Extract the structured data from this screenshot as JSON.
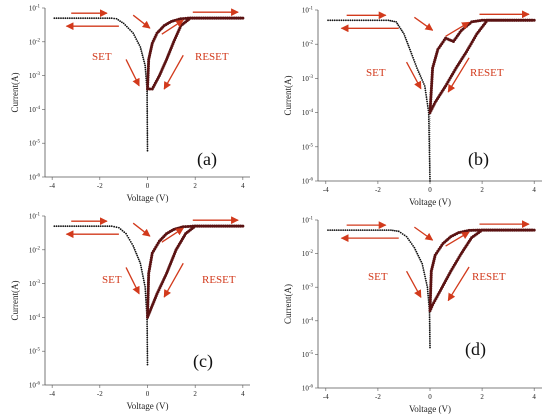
{
  "colors": {
    "set_branch": "#111111",
    "reset_branch": "#5a1212",
    "arrow": "#d23a1c",
    "annotation": "#d23a1c"
  },
  "chart_data": [
    {
      "panel": "(a)",
      "type": "scatter",
      "xlabel": "Voltage (V)",
      "ylabel": "Current(A)",
      "xlim": [
        -4.3,
        4.3
      ],
      "ylim_log10": [
        -6,
        -1
      ],
      "xticks": [
        "-4",
        "-2",
        "0",
        "2",
        "4"
      ],
      "yticks": [
        "10-6",
        "10-5",
        "10-4",
        "10-3",
        "10-2",
        "10-1"
      ],
      "y_scale": "log",
      "compliance_current": 0.05,
      "annotations": [
        "SET",
        "RESET"
      ],
      "series": [
        {
          "role": "set-up",
          "points": [
            [
              0.0,
              6e-06
            ],
            [
              -0.02,
              0.0004
            ],
            [
              -0.1,
              0.002
            ],
            [
              -0.3,
              0.007
            ],
            [
              -0.6,
              0.018
            ],
            [
              -1.0,
              0.035
            ],
            [
              -1.3,
              0.048
            ],
            [
              -1.5,
              0.05
            ],
            [
              -4.0,
              0.05
            ]
          ]
        },
        {
          "role": "reset",
          "points": [
            [
              0.0,
              0.0004
            ],
            [
              0.05,
              0.003
            ],
            [
              0.2,
              0.009
            ],
            [
              0.4,
              0.018
            ],
            [
              0.7,
              0.03
            ],
            [
              1.0,
              0.04
            ],
            [
              1.4,
              0.048
            ],
            [
              1.7,
              0.05
            ],
            [
              4.0,
              0.05
            ]
          ]
        },
        {
          "role": "reset-return",
          "points": [
            [
              4.0,
              0.05
            ],
            [
              1.8,
              0.05
            ],
            [
              1.4,
              0.03
            ],
            [
              1.1,
              0.01
            ],
            [
              0.8,
              0.003
            ],
            [
              0.5,
              0.001
            ],
            [
              0.2,
              0.0004
            ],
            [
              0.0,
              0.0004
            ]
          ]
        }
      ]
    },
    {
      "panel": "(b)",
      "type": "scatter",
      "xlabel": "Voltage (V)",
      "ylabel": "Current(A)",
      "xlim": [
        -4.3,
        4.3
      ],
      "ylim_log10": [
        -6,
        -1
      ],
      "xticks": [
        "-4",
        "-2",
        "0",
        "2",
        "4"
      ],
      "yticks": [
        "10-6",
        "10-5",
        "10-4",
        "10-3",
        "10-2",
        "10-1"
      ],
      "y_scale": "log",
      "compliance_current": 0.05,
      "annotations": [
        "SET",
        "RESET"
      ],
      "series": [
        {
          "role": "set-up",
          "points": [
            [
              0.0,
              1e-06
            ],
            [
              -0.05,
              0.0001
            ],
            [
              -0.2,
              0.0006
            ],
            [
              -0.5,
              0.002
            ],
            [
              -0.8,
              0.008
            ],
            [
              -1.0,
              0.02
            ],
            [
              -1.3,
              0.045
            ],
            [
              -1.6,
              0.05
            ],
            [
              -4.0,
              0.05
            ]
          ]
        },
        {
          "role": "reset",
          "points": [
            [
              0.0,
              0.0001
            ],
            [
              0.1,
              0.002
            ],
            [
              0.3,
              0.007
            ],
            [
              0.6,
              0.015
            ],
            [
              0.9,
              0.012
            ],
            [
              1.2,
              0.025
            ],
            [
              1.6,
              0.045
            ],
            [
              2.0,
              0.05
            ],
            [
              4.0,
              0.05
            ]
          ]
        },
        {
          "role": "reset-return",
          "points": [
            [
              4.0,
              0.05
            ],
            [
              2.2,
              0.05
            ],
            [
              1.8,
              0.02
            ],
            [
              1.4,
              0.006
            ],
            [
              1.0,
              0.002
            ],
            [
              0.6,
              0.0006
            ],
            [
              0.2,
              0.0002
            ],
            [
              0.0,
              0.0001
            ]
          ]
        }
      ]
    },
    {
      "panel": "(c)",
      "type": "scatter",
      "xlabel": "Voltage (V)",
      "ylabel": "Current(A)",
      "xlim": [
        -4.3,
        4.3
      ],
      "ylim_log10": [
        -6,
        -1
      ],
      "xticks": [
        "-4",
        "-2",
        "0",
        "2",
        "4"
      ],
      "yticks": [
        "10-6",
        "10-5",
        "10-4",
        "10-3",
        "10-2",
        "10-1"
      ],
      "y_scale": "log",
      "compliance_current": 0.05,
      "annotations": [
        "SET",
        "RESET"
      ],
      "series": [
        {
          "role": "set-up",
          "points": [
            [
              0.0,
              4e-06
            ],
            [
              -0.02,
              0.0001
            ],
            [
              -0.1,
              0.0008
            ],
            [
              -0.3,
              0.004
            ],
            [
              -0.6,
              0.013
            ],
            [
              -0.9,
              0.03
            ],
            [
              -1.2,
              0.045
            ],
            [
              -1.5,
              0.05
            ],
            [
              -4.0,
              0.05
            ]
          ]
        },
        {
          "role": "reset",
          "points": [
            [
              0.0,
              0.0001
            ],
            [
              0.05,
              0.002
            ],
            [
              0.2,
              0.008
            ],
            [
              0.5,
              0.018
            ],
            [
              0.8,
              0.03
            ],
            [
              1.1,
              0.04
            ],
            [
              1.5,
              0.048
            ],
            [
              1.9,
              0.05
            ],
            [
              4.0,
              0.05
            ]
          ]
        },
        {
          "role": "reset-return",
          "points": [
            [
              4.0,
              0.05
            ],
            [
              2.0,
              0.05
            ],
            [
              1.6,
              0.03
            ],
            [
              1.2,
              0.01
            ],
            [
              0.8,
              0.002
            ],
            [
              0.4,
              0.0005
            ],
            [
              0.1,
              0.00015
            ],
            [
              0.0,
              0.0001
            ]
          ]
        }
      ]
    },
    {
      "panel": "(d)",
      "type": "scatter",
      "xlabel": "Voltage (V)",
      "ylabel": "Current(A)",
      "xlim": [
        -4.3,
        4.3
      ],
      "ylim_log10": [
        -6,
        -1
      ],
      "xticks": [
        "-4",
        "-2",
        "0",
        "2",
        "4"
      ],
      "yticks": [
        "10-6",
        "10-5",
        "10-4",
        "10-3",
        "10-2",
        "10-1"
      ],
      "y_scale": "log",
      "compliance_current": 0.05,
      "annotations": [
        "SET",
        "RESET"
      ],
      "series": [
        {
          "role": "set-up",
          "points": [
            [
              0.0,
              1.6e-05
            ],
            [
              -0.02,
              0.0002
            ],
            [
              -0.1,
              0.001
            ],
            [
              -0.3,
              0.005
            ],
            [
              -0.6,
              0.015
            ],
            [
              -0.9,
              0.032
            ],
            [
              -1.2,
              0.046
            ],
            [
              -1.5,
              0.05
            ],
            [
              -4.0,
              0.05
            ]
          ]
        },
        {
          "role": "reset",
          "points": [
            [
              0.0,
              0.0002
            ],
            [
              0.05,
              0.003
            ],
            [
              0.2,
              0.009
            ],
            [
              0.5,
              0.02
            ],
            [
              0.8,
              0.032
            ],
            [
              1.1,
              0.042
            ],
            [
              1.5,
              0.049
            ],
            [
              1.9,
              0.05
            ],
            [
              4.0,
              0.05
            ]
          ]
        },
        {
          "role": "reset-return",
          "points": [
            [
              4.0,
              0.05
            ],
            [
              2.0,
              0.05
            ],
            [
              1.6,
              0.03
            ],
            [
              1.2,
              0.01
            ],
            [
              0.8,
              0.003
            ],
            [
              0.4,
              0.0008
            ],
            [
              0.1,
              0.0003
            ],
            [
              0.0,
              0.0002
            ]
          ]
        }
      ]
    }
  ]
}
